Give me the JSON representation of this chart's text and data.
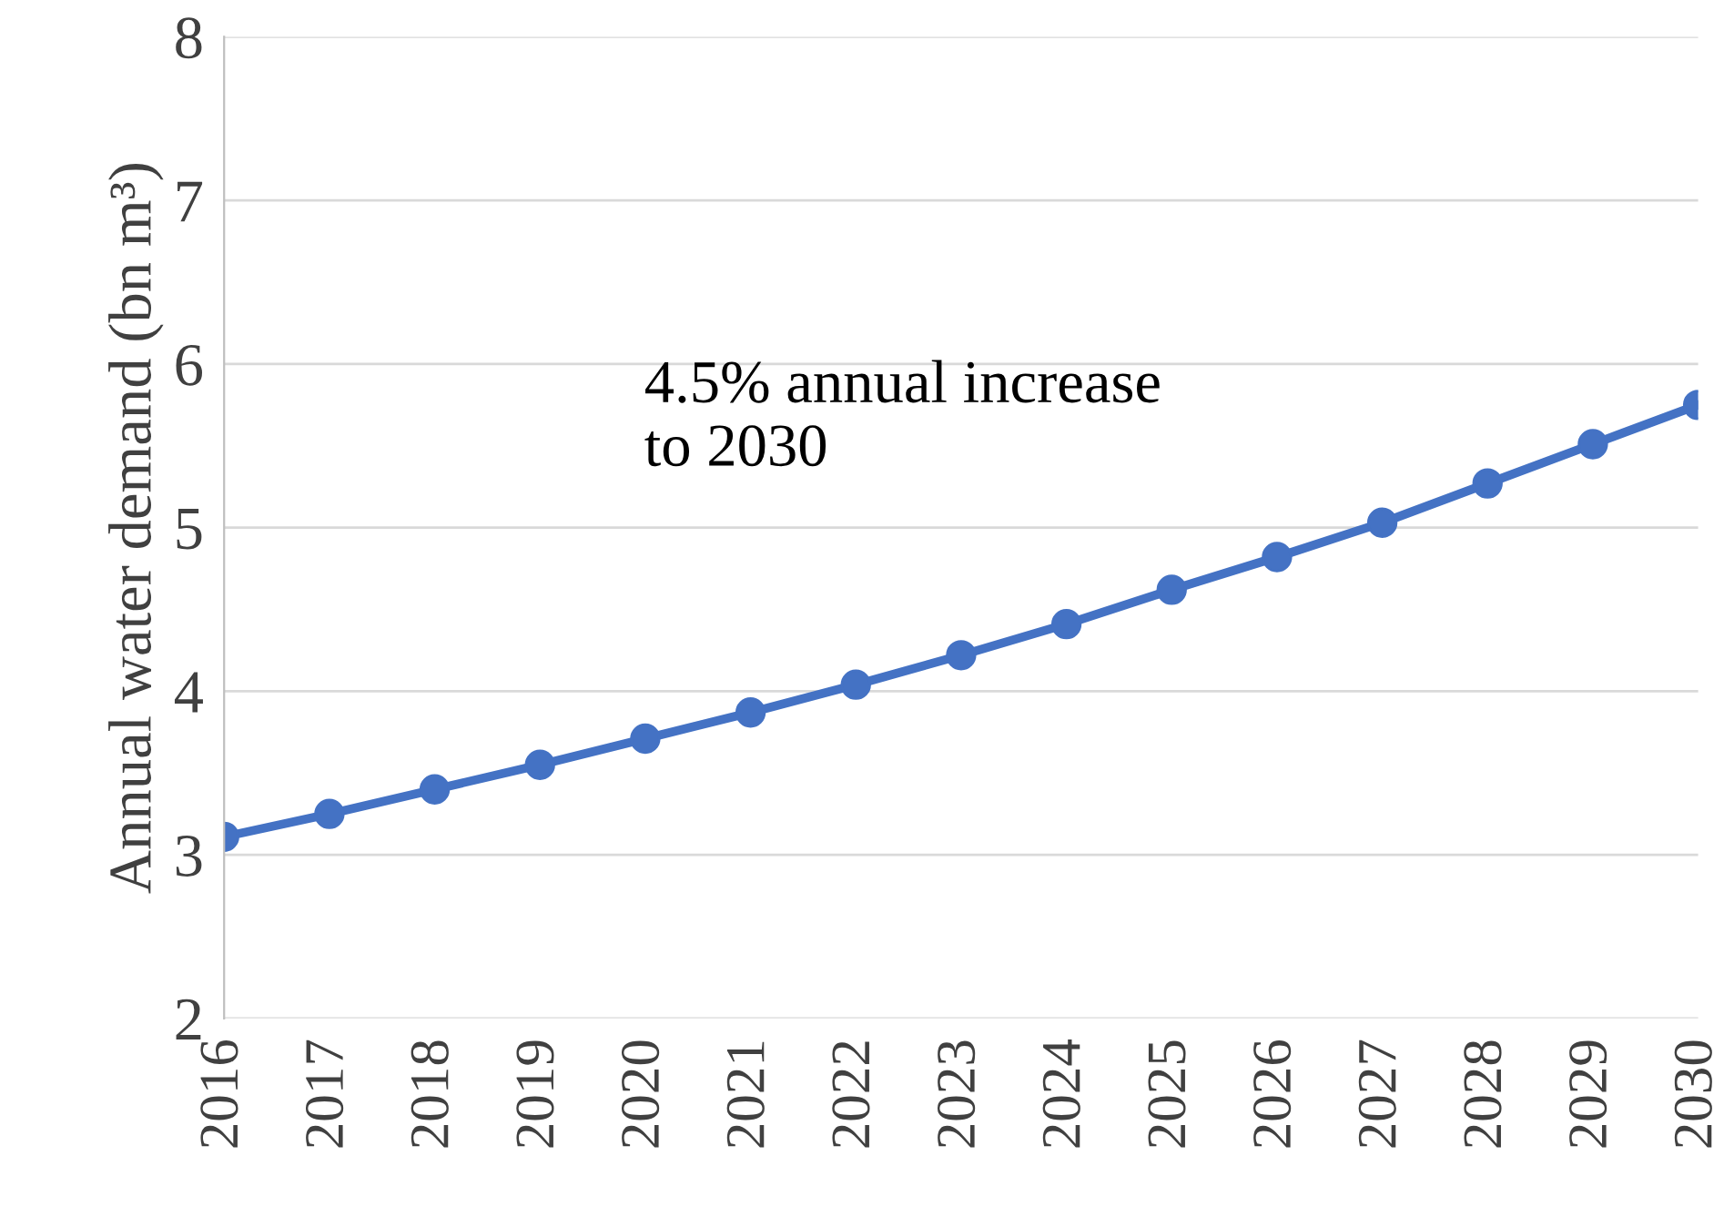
{
  "chart_data": {
    "type": "line",
    "ylabel": "Annual water demand (bn m³)",
    "categories": [
      "2016",
      "2017",
      "2018",
      "2019",
      "2020",
      "2021",
      "2022",
      "2023",
      "2024",
      "2025",
      "2026",
      "2027",
      "2028",
      "2029",
      "2030"
    ],
    "series": [
      {
        "color": "#4472c4",
        "values": [
          3.11,
          3.25,
          3.4,
          3.55,
          3.71,
          3.87,
          4.04,
          4.22,
          4.41,
          4.62,
          4.82,
          5.03,
          5.27,
          5.51,
          5.75
        ]
      }
    ],
    "ylim": [
      2,
      8
    ],
    "yticks": [
      2,
      3,
      4,
      5,
      6,
      7,
      8
    ],
    "grid": "y",
    "marker": "circle",
    "line_style": "solid",
    "legend": false,
    "annotations": [
      "4.5% annual increase\nto 2030"
    ]
  }
}
